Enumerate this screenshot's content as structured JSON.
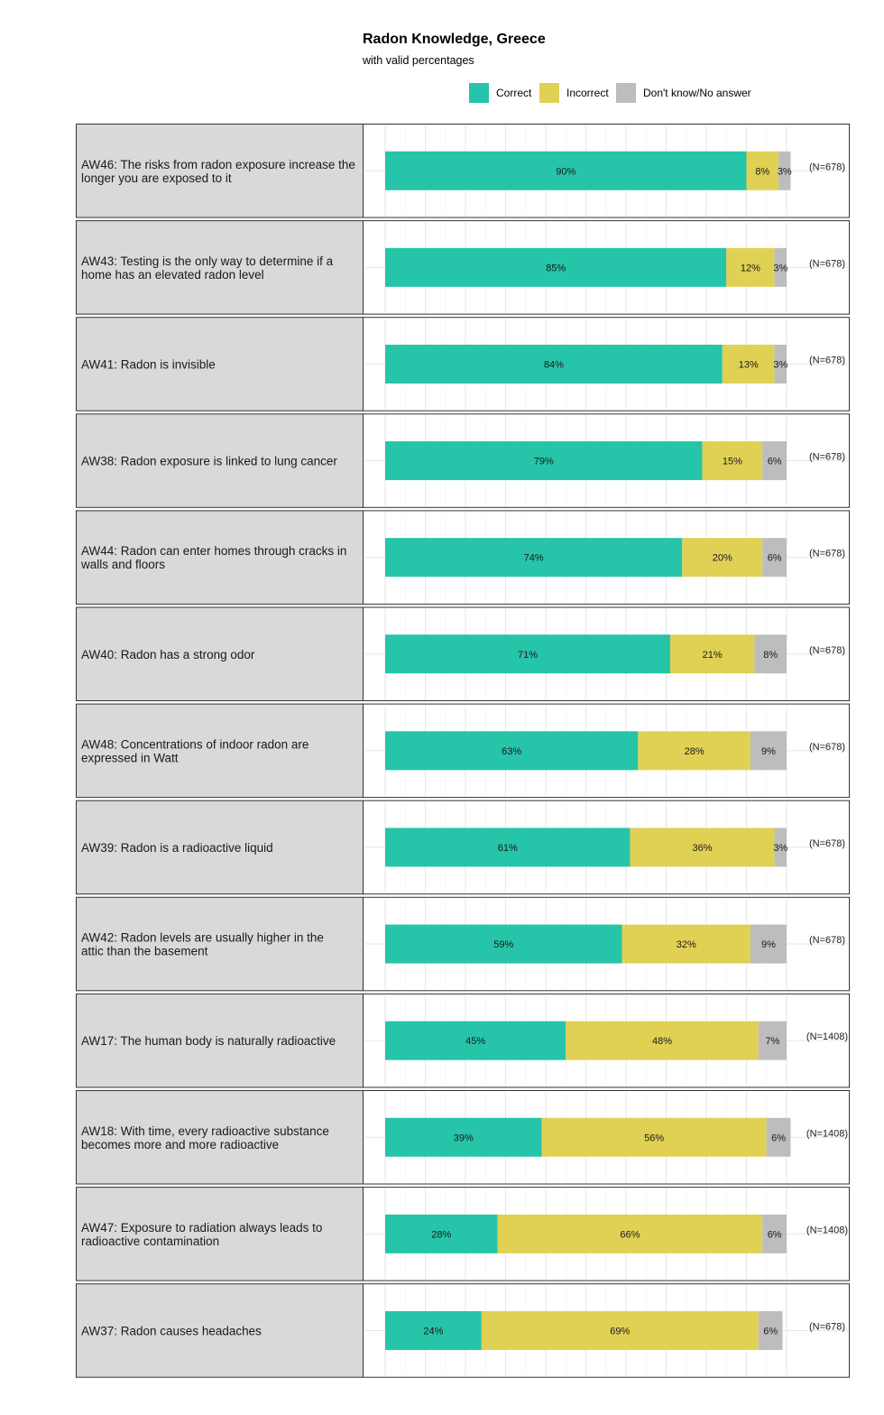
{
  "chart_data": {
    "type": "bar",
    "orientation": "horizontal",
    "stacked": true,
    "title": "Radon Knowledge, Greece",
    "subtitle": "with valid percentages",
    "xlim": [
      0,
      100
    ],
    "legend_position": "top-right",
    "series": [
      {
        "name": "Correct",
        "color": "#26c4a8"
      },
      {
        "name": "Incorrect",
        "color": "#e0d054"
      },
      {
        "name": "Don't know/No answer",
        "color": "#bdbdbd"
      }
    ],
    "rows": [
      {
        "label": [
          "AW46: The risks from radon exposure increase the",
          "longer you are exposed to it"
        ],
        "values": [
          90,
          8,
          3
        ],
        "n": "(N=678)"
      },
      {
        "label": [
          "AW43: Testing is the only way to determine if a",
          "home has an elevated radon level"
        ],
        "values": [
          85,
          12,
          3
        ],
        "n": "(N=678)"
      },
      {
        "label": [
          "AW41: Radon is invisible"
        ],
        "values": [
          84,
          13,
          3
        ],
        "n": "(N=678)"
      },
      {
        "label": [
          "AW38: Radon exposure is linked to lung cancer"
        ],
        "values": [
          79,
          15,
          6
        ],
        "n": "(N=678)"
      },
      {
        "label": [
          "AW44: Radon can enter homes through cracks in",
          "walls and floors"
        ],
        "values": [
          74,
          20,
          6
        ],
        "n": "(N=678)"
      },
      {
        "label": [
          "AW40: Radon has a strong odor"
        ],
        "values": [
          71,
          21,
          8
        ],
        "n": "(N=678)"
      },
      {
        "label": [
          "AW48: Concentrations of indoor radon are",
          "expressed in Watt"
        ],
        "values": [
          63,
          28,
          9
        ],
        "n": "(N=678)"
      },
      {
        "label": [
          "AW39: Radon is a radioactive liquid"
        ],
        "values": [
          61,
          36,
          3
        ],
        "n": "(N=678)"
      },
      {
        "label": [
          "AW42: Radon levels are usually higher in the",
          "attic than the basement"
        ],
        "values": [
          59,
          32,
          9
        ],
        "n": "(N=678)"
      },
      {
        "label": [
          "AW17: The human body is naturally radioactive"
        ],
        "values": [
          45,
          48,
          7
        ],
        "n": "(N=1408)"
      },
      {
        "label": [
          "AW18: With time, every radioactive substance",
          "becomes more and more radioactive"
        ],
        "values": [
          39,
          56,
          6
        ],
        "n": "(N=1408)"
      },
      {
        "label": [
          "AW47: Exposure to radiation always leads to",
          "radioactive contamination"
        ],
        "values": [
          28,
          66,
          6
        ],
        "n": "(N=1408)"
      },
      {
        "label": [
          "AW37: Radon causes headaches"
        ],
        "values": [
          24,
          69,
          6
        ],
        "n": "(N=678)"
      }
    ]
  }
}
